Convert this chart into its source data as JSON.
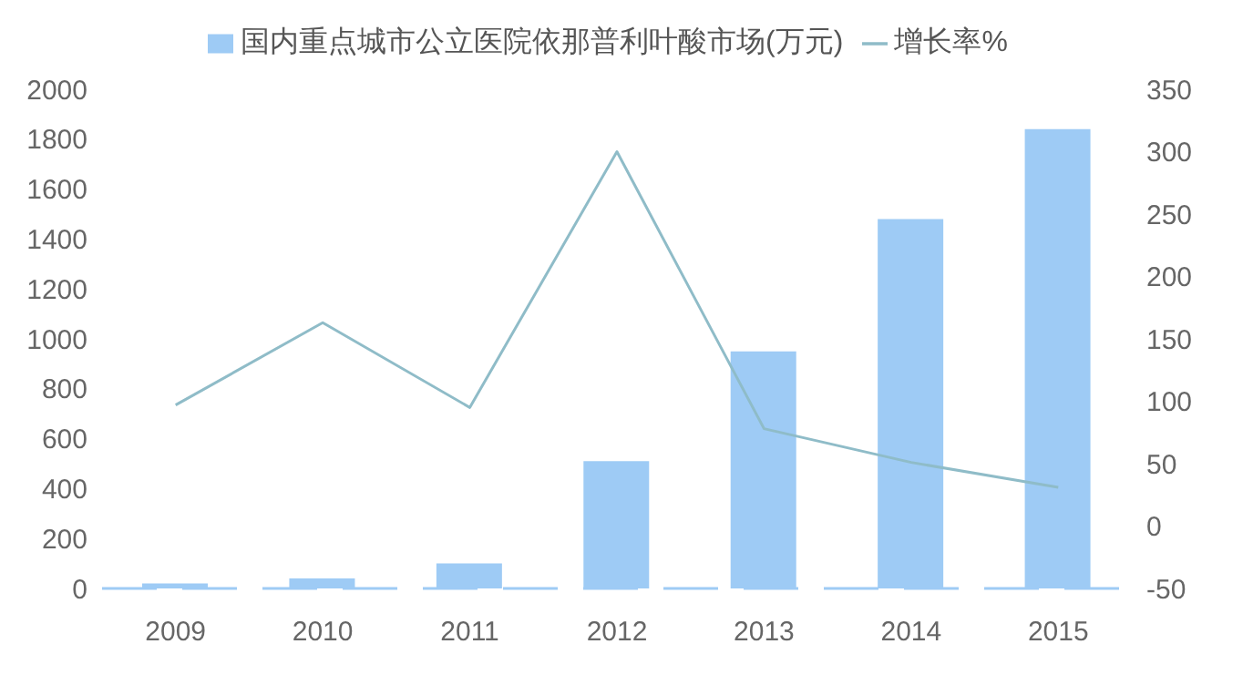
{
  "chart_data": {
    "type": "bar",
    "categories": [
      "2009",
      "2010",
      "2011",
      "2012",
      "2013",
      "2014",
      "2015"
    ],
    "series": [
      {
        "name": "国内重点城市公立医院依那普利叶酸市场(万元)",
        "color": "#9ecbf5",
        "values": [
          20,
          40,
          100,
          510,
          950,
          1480,
          1840
        ]
      },
      {
        "name": "增长率%",
        "type": "line",
        "axis": "y2",
        "color": "#8fbcc8",
        "values": [
          97,
          163,
          95,
          300,
          78,
          51,
          31
        ]
      }
    ],
    "ylim": [
      0,
      2000
    ],
    "yticks": [
      0,
      200,
      400,
      600,
      800,
      1000,
      1200,
      1400,
      1600,
      1800,
      2000
    ],
    "y2lim": [
      -50,
      350
    ],
    "y2ticks": [
      -50,
      0,
      50,
      100,
      150,
      200,
      250,
      300,
      350
    ],
    "legend": "top",
    "marker": "none"
  }
}
